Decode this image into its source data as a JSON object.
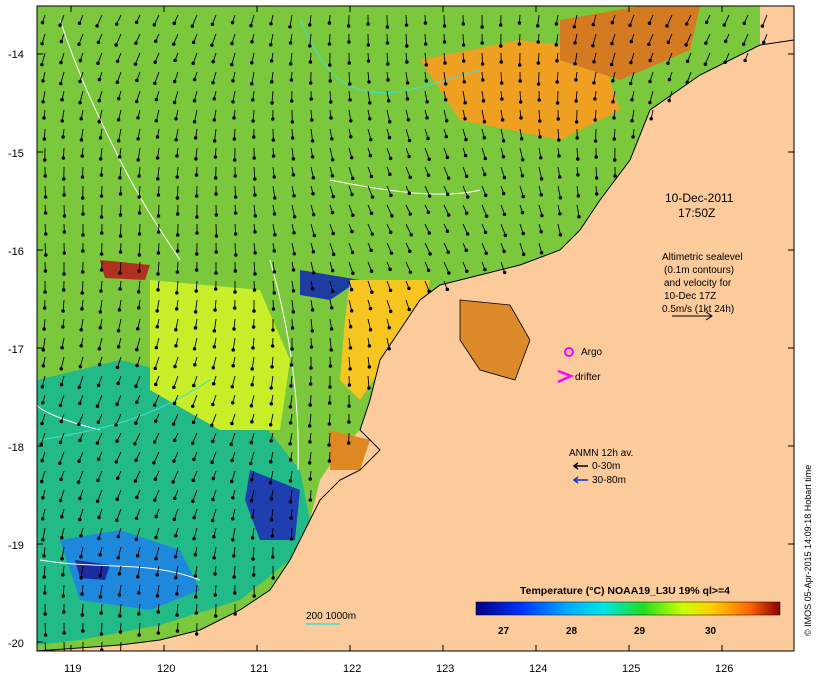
{
  "map": {
    "timestamp_date": "10-Dec-2011",
    "timestamp_time": "17:50Z",
    "altimetric_note": [
      "Altimetric sealevel",
      "(0.1m contours)",
      "and velocity for",
      "10-Dec 17Z",
      "0.5m/s (1kt 24h)"
    ],
    "argo_label": "Argo",
    "drifter_label": "drifter",
    "anmn_title": "ANMN 12h av.",
    "anmn_shallow": "0-30m",
    "anmn_deep": "30-80m",
    "isobath_label": "200  1000m",
    "colorbar_title": "Temperature (°C) NOAA19_L3U 19% ql>=4",
    "colorbar_ticks": [
      "27",
      "28",
      "29",
      "30"
    ],
    "credit": "© IMOS 05-Apr-2015 14:09:18 Hobart time",
    "x_ticks": [
      "119",
      "120",
      "121",
      "122",
      "123",
      "124",
      "125",
      "126"
    ],
    "y_ticks": [
      "-14",
      "-15",
      "-16",
      "-17",
      "-18",
      "-19",
      "-20"
    ],
    "colors": {
      "land": "#fccb9c",
      "argo": "#ff00ff",
      "drifter": "#ff00ff",
      "shallow_arrow": "#000000",
      "deep_arrow": "#0033cc",
      "isobath": "#40e0d0"
    }
  }
}
